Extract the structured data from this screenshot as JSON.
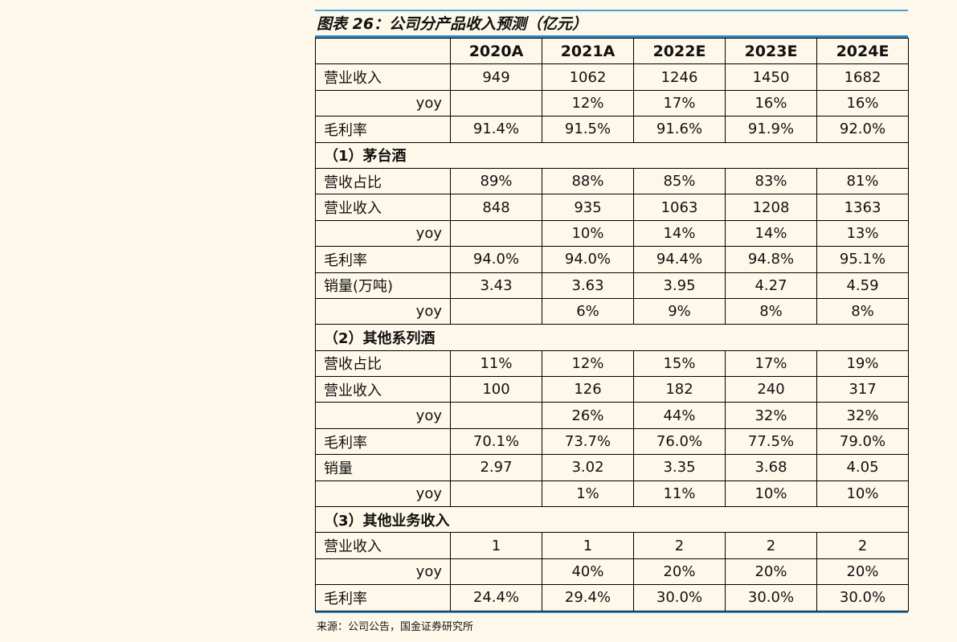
{
  "title": "图表 26：公司分产品收入预测（亿元）",
  "columns": [
    "",
    "2020A",
    "2021A",
    "2022E",
    "2023E",
    "2024E"
  ],
  "rows": [
    {
      "type": "data",
      "label": "营业收入",
      "values": [
        "949",
        "1062",
        "1246",
        "1450",
        "1682"
      ]
    },
    {
      "type": "yoy",
      "label": "yoy",
      "values": [
        "",
        "12%",
        "17%",
        "16%",
        "16%"
      ]
    },
    {
      "type": "data",
      "label": "毛利率",
      "values": [
        "91.4%",
        "91.5%",
        "91.6%",
        "91.9%",
        "92.0%"
      ]
    },
    {
      "type": "section",
      "label": "（1）茅台酒"
    },
    {
      "type": "data",
      "label": "营收占比",
      "values": [
        "89%",
        "88%",
        "85%",
        "83%",
        "81%"
      ]
    },
    {
      "type": "data",
      "label": "营业收入",
      "values": [
        "848",
        "935",
        "1063",
        "1208",
        "1363"
      ]
    },
    {
      "type": "yoy",
      "label": "yoy",
      "values": [
        "",
        "10%",
        "14%",
        "14%",
        "13%"
      ]
    },
    {
      "type": "data",
      "label": "毛利率",
      "values": [
        "94.0%",
        "94.0%",
        "94.4%",
        "94.8%",
        "95.1%"
      ]
    },
    {
      "type": "data",
      "label": "销量(万吨)",
      "values": [
        "3.43",
        "3.63",
        "3.95",
        "4.27",
        "4.59"
      ]
    },
    {
      "type": "yoy",
      "label": "yoy",
      "values": [
        "",
        "6%",
        "9%",
        "8%",
        "8%"
      ]
    },
    {
      "type": "section",
      "label": "（2）其他系列酒"
    },
    {
      "type": "data",
      "label": "营收占比",
      "values": [
        "11%",
        "12%",
        "15%",
        "17%",
        "19%"
      ]
    },
    {
      "type": "data",
      "label": "营业收入",
      "values": [
        "100",
        "126",
        "182",
        "240",
        "317"
      ]
    },
    {
      "type": "yoy",
      "label": "yoy",
      "values": [
        "",
        "26%",
        "44%",
        "32%",
        "32%"
      ]
    },
    {
      "type": "data",
      "label": "毛利率",
      "values": [
        "70.1%",
        "73.7%",
        "76.0%",
        "77.5%",
        "79.0%"
      ]
    },
    {
      "type": "data",
      "label": "销量",
      "values": [
        "2.97",
        "3.02",
        "3.35",
        "3.68",
        "4.05"
      ]
    },
    {
      "type": "yoy",
      "label": "yoy",
      "values": [
        "",
        "1%",
        "11%",
        "10%",
        "10%"
      ]
    },
    {
      "type": "section",
      "label": "（3）其他业务收入"
    },
    {
      "type": "data",
      "label": "营业收入",
      "values": [
        "1",
        "1",
        "2",
        "2",
        "2"
      ]
    },
    {
      "type": "yoy",
      "label": "yoy",
      "values": [
        "",
        "40%",
        "20%",
        "20%",
        "20%"
      ]
    },
    {
      "type": "data",
      "label": "毛利率",
      "values": [
        "24.4%",
        "29.4%",
        "30.0%",
        "30.0%",
        "30.0%"
      ]
    }
  ],
  "source": "来源：公司公告，国金证券研究所"
}
